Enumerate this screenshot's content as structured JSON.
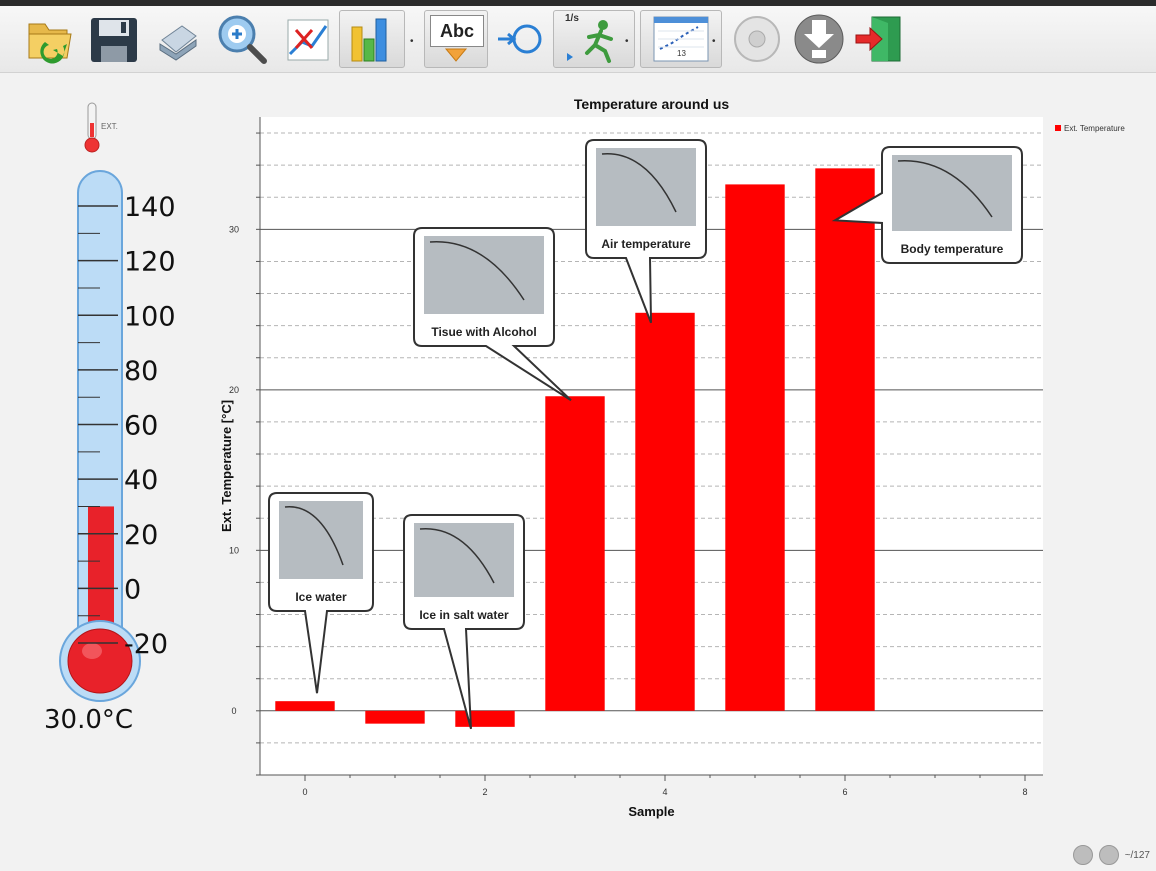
{
  "toolbar": {
    "buttons": [
      {
        "name": "open-folder-icon"
      },
      {
        "name": "save-icon"
      },
      {
        "name": "print-icon"
      },
      {
        "name": "zoom-in-icon"
      },
      {
        "name": "clear-graph-icon"
      },
      {
        "name": "chart-type-icon"
      },
      {
        "name": "label-icon",
        "label": "Abc"
      },
      {
        "name": "fit-curve-icon"
      },
      {
        "name": "run-experiment-icon",
        "label": "1/s"
      },
      {
        "name": "data-table-icon",
        "label": "13"
      },
      {
        "name": "stop-icon"
      },
      {
        "name": "download-icon"
      },
      {
        "name": "exit-icon"
      }
    ]
  },
  "thermometer": {
    "sensor_label": "EXT.",
    "scale": [
      "140",
      "120",
      "100",
      "80",
      "60",
      "40",
      "20",
      "0",
      "-20"
    ],
    "value": 30.0,
    "reading": "30.0°C"
  },
  "chart_data": {
    "type": "bar",
    "title": "Temperature around us",
    "xlabel": "Sample",
    "ylabel": "Ext. Temperature [°C]",
    "x": [
      0,
      1,
      2,
      3,
      4,
      5,
      6
    ],
    "values": [
      0.6,
      -0.8,
      -1.0,
      19.6,
      24.8,
      32.8,
      33.8
    ],
    "xlim": [
      -0.5,
      8.2
    ],
    "ylim": [
      -4,
      37
    ],
    "xticks": [
      "0",
      "2",
      "4",
      "6",
      "8"
    ],
    "yticks": [
      "0",
      "10",
      "20",
      "30"
    ],
    "grid": true,
    "legend": {
      "position": "top-right",
      "entries": [
        "Ext. Temperature"
      ]
    },
    "color": "#ff0000",
    "annotations": [
      {
        "x": 0,
        "text": "Ice water"
      },
      {
        "x": 2,
        "text": "Ice in salt water"
      },
      {
        "x": 3,
        "text": "Tisue with Alcohol"
      },
      {
        "x": 4,
        "text": "Air temperature"
      },
      {
        "x": 6,
        "text": "Body temperature"
      }
    ]
  },
  "status": {
    "counter": "~/127"
  }
}
